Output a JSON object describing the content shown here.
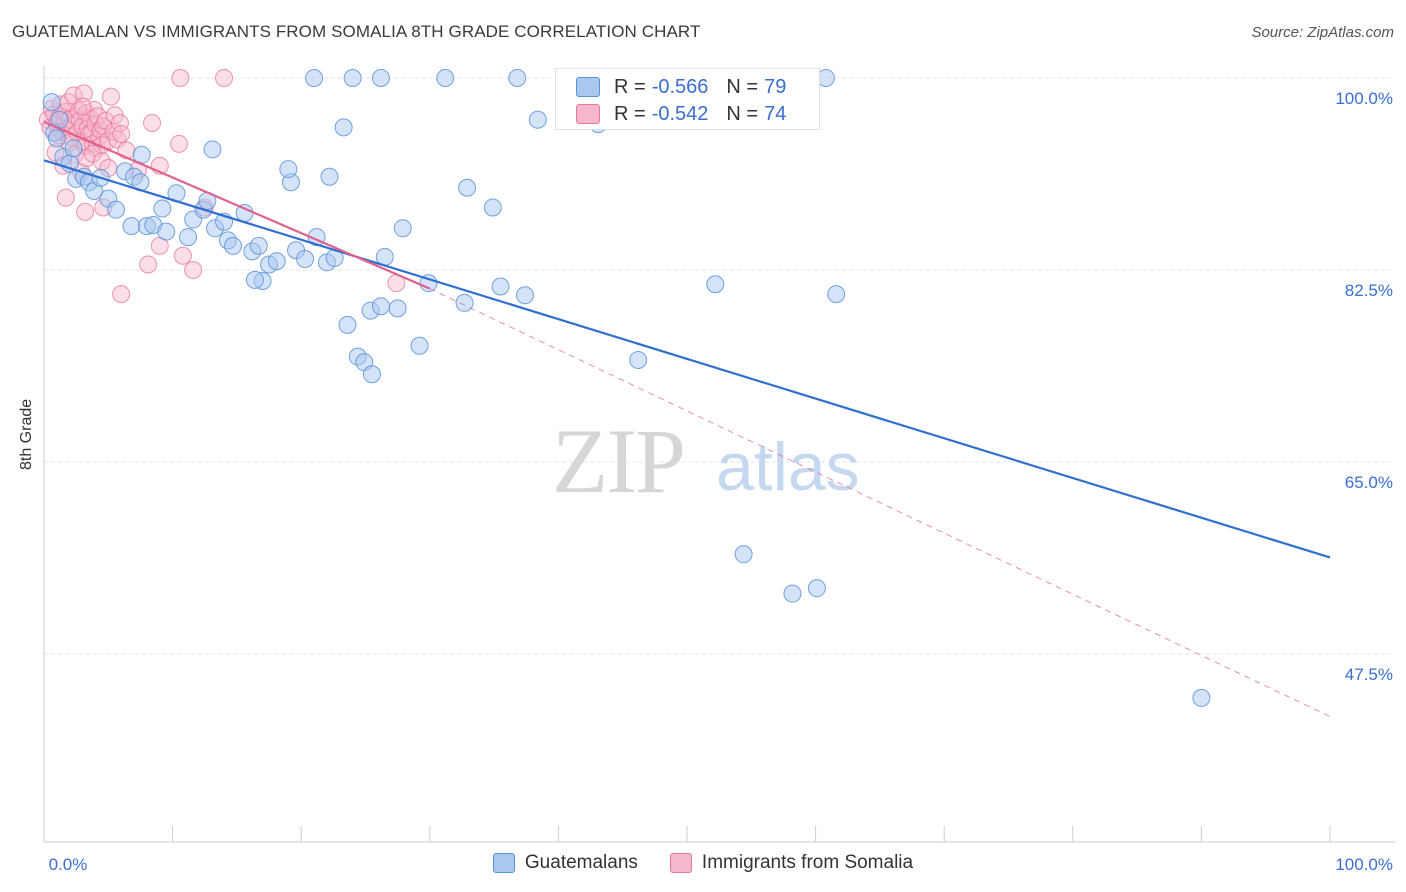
{
  "title": "GUATEMALAN VS IMMIGRANTS FROM SOMALIA 8TH GRADE CORRELATION CHART",
  "source": "Source: ZipAtlas.com",
  "watermark": {
    "zip": "ZIP",
    "atlas": "atlas"
  },
  "colors": {
    "blue_fill": "#a9c8f0",
    "blue_stroke": "#5b93dc",
    "blue_line": "#2f6fd0",
    "pink_fill": "#f7b8cc",
    "pink_stroke": "#e8799d",
    "pink_line": "#e0608e",
    "grid": "#e3e6ea",
    "tick_text": "#3a6fd0"
  },
  "legend_top": [
    {
      "r_label": "R =",
      "r_value": "-0.566",
      "n_label": "N =",
      "n_value": "79"
    },
    {
      "r_label": "R =",
      "r_value": "-0.542",
      "n_label": "N =",
      "n_value": "74"
    }
  ],
  "legend_bottom": [
    "Guatemalans",
    "Immigrants from Somalia"
  ],
  "chart_data": {
    "type": "scatter",
    "title": "GUATEMALAN VS IMMIGRANTS FROM SOMALIA 8TH GRADE CORRELATION CHART",
    "xlabel": "",
    "ylabel": "8th Grade",
    "xlim": [
      0,
      100
    ],
    "ylim": [
      33,
      100
    ],
    "x_tick_labels": [
      "0.0%",
      "100.0%"
    ],
    "y_ticks": [
      100.0,
      82.5,
      65.0,
      47.5
    ],
    "y_tick_labels": [
      "100.0%",
      "82.5%",
      "65.0%",
      "47.5%"
    ],
    "grid": true,
    "legend": "top-center and bottom",
    "series": [
      {
        "name": "Guatemalans",
        "r": -0.566,
        "n": 79,
        "trend": {
          "x": [
            0,
            100
          ],
          "y": [
            92.5,
            56.3
          ]
        },
        "points": [
          [
            0.6,
            97.8
          ],
          [
            0.8,
            95.0
          ],
          [
            1.0,
            94.5
          ],
          [
            1.2,
            96.2
          ],
          [
            1.5,
            92.8
          ],
          [
            2.0,
            92.2
          ],
          [
            2.3,
            93.6
          ],
          [
            2.5,
            90.8
          ],
          [
            3.1,
            91.0
          ],
          [
            3.5,
            90.5
          ],
          [
            3.9,
            89.7
          ],
          [
            4.4,
            90.9
          ],
          [
            5.0,
            89.0
          ],
          [
            5.6,
            88.0
          ],
          [
            6.3,
            91.5
          ],
          [
            7.0,
            91.0
          ],
          [
            7.5,
            90.5
          ],
          [
            7.6,
            93.0
          ],
          [
            6.8,
            86.5
          ],
          [
            8.0,
            86.5
          ],
          [
            8.5,
            86.6
          ],
          [
            9.5,
            86.0
          ],
          [
            9.2,
            88.1
          ],
          [
            10.3,
            89.5
          ],
          [
            11.2,
            85.5
          ],
          [
            11.6,
            87.1
          ],
          [
            12.4,
            88.0
          ],
          [
            12.7,
            88.8
          ],
          [
            13.1,
            93.5
          ],
          [
            13.3,
            86.3
          ],
          [
            14.0,
            86.9
          ],
          [
            14.3,
            85.2
          ],
          [
            14.7,
            84.7
          ],
          [
            15.6,
            87.7
          ],
          [
            16.2,
            84.2
          ],
          [
            16.7,
            84.7
          ],
          [
            17.5,
            83.0
          ],
          [
            18.1,
            83.3
          ],
          [
            17.0,
            81.5
          ],
          [
            16.4,
            81.6
          ],
          [
            19.2,
            90.5
          ],
          [
            19.0,
            91.7
          ],
          [
            19.6,
            84.3
          ],
          [
            20.3,
            83.5
          ],
          [
            21.2,
            85.5
          ],
          [
            22.0,
            83.2
          ],
          [
            22.6,
            83.6
          ],
          [
            22.2,
            91.0
          ],
          [
            23.3,
            95.5
          ],
          [
            23.6,
            77.5
          ],
          [
            24.4,
            74.6
          ],
          [
            24.9,
            74.1
          ],
          [
            25.4,
            78.8
          ],
          [
            25.5,
            73.0
          ],
          [
            26.2,
            79.2
          ],
          [
            26.5,
            83.7
          ],
          [
            27.5,
            79.0
          ],
          [
            27.9,
            86.3
          ],
          [
            29.2,
            75.6
          ],
          [
            29.9,
            81.3
          ],
          [
            32.7,
            79.5
          ],
          [
            32.9,
            90.0
          ],
          [
            34.9,
            88.2
          ],
          [
            35.5,
            81.0
          ],
          [
            37.4,
            80.2
          ],
          [
            38.4,
            96.2
          ],
          [
            43.1,
            95.8
          ],
          [
            46.2,
            74.3
          ],
          [
            54.4,
            56.6
          ],
          [
            58.2,
            53.0
          ],
          [
            60.1,
            53.5
          ],
          [
            52.2,
            81.2
          ],
          [
            61.6,
            80.3
          ],
          [
            21.0,
            100.0
          ],
          [
            24.0,
            100.0
          ],
          [
            26.2,
            100.0
          ],
          [
            31.2,
            100.0
          ],
          [
            36.8,
            100.0
          ],
          [
            60.8,
            100.0
          ],
          [
            90.0,
            43.5
          ]
        ]
      },
      {
        "name": "Immigrants from Somalia",
        "r": -0.542,
        "n": 74,
        "trend": {
          "x": [
            0,
            30
          ],
          "y": [
            96.0,
            80.8
          ]
        },
        "trend_dashed": {
          "x": [
            30,
            100
          ],
          "y": [
            80.8,
            41.8
          ]
        },
        "points": [
          [
            0.3,
            96.2
          ],
          [
            0.5,
            95.5
          ],
          [
            0.6,
            97.2
          ],
          [
            0.8,
            96.7
          ],
          [
            1.0,
            95.8
          ],
          [
            1.1,
            94.8
          ],
          [
            1.2,
            96.4
          ],
          [
            1.3,
            97.6
          ],
          [
            1.4,
            95.1
          ],
          [
            1.6,
            96.0
          ],
          [
            1.7,
            96.9
          ],
          [
            1.8,
            95.3
          ],
          [
            1.9,
            97.8
          ],
          [
            2.0,
            96.2
          ],
          [
            2.1,
            94.6
          ],
          [
            2.2,
            95.7
          ],
          [
            2.3,
            98.4
          ],
          [
            2.5,
            96.5
          ],
          [
            2.6,
            95.0
          ],
          [
            2.7,
            97.0
          ],
          [
            2.8,
            96.1
          ],
          [
            2.9,
            94.2
          ],
          [
            3.0,
            95.6
          ],
          [
            3.1,
            98.6
          ],
          [
            3.2,
            93.8
          ],
          [
            3.3,
            96.8
          ],
          [
            3.4,
            95.4
          ],
          [
            3.5,
            94.9
          ],
          [
            3.6,
            96.3
          ],
          [
            3.7,
            95.0
          ],
          [
            3.8,
            94.0
          ],
          [
            3.9,
            97.1
          ],
          [
            4.0,
            95.8
          ],
          [
            4.1,
            93.6
          ],
          [
            4.2,
            96.5
          ],
          [
            4.3,
            94.7
          ],
          [
            4.4,
            95.2
          ],
          [
            4.5,
            93.9
          ],
          [
            4.6,
            95.6
          ],
          [
            4.8,
            96.1
          ],
          [
            5.0,
            94.3
          ],
          [
            5.2,
            98.3
          ],
          [
            5.4,
            95.1
          ],
          [
            5.5,
            96.6
          ],
          [
            5.7,
            94.4
          ],
          [
            5.9,
            95.9
          ],
          [
            2.0,
            94.1
          ],
          [
            2.4,
            93.0
          ],
          [
            2.9,
            91.4
          ],
          [
            3.3,
            92.7
          ],
          [
            3.8,
            93.1
          ],
          [
            4.5,
            92.4
          ],
          [
            5.0,
            91.8
          ],
          [
            1.7,
            89.1
          ],
          [
            3.2,
            87.8
          ],
          [
            4.6,
            88.2
          ],
          [
            6.0,
            94.9
          ],
          [
            6.4,
            93.4
          ],
          [
            7.3,
            91.6
          ],
          [
            8.4,
            95.9
          ],
          [
            9.0,
            92.0
          ],
          [
            10.5,
            94.0
          ],
          [
            11.6,
            82.5
          ],
          [
            8.1,
            83.0
          ],
          [
            6.0,
            80.3
          ],
          [
            9.0,
            84.7
          ],
          [
            10.8,
            83.8
          ],
          [
            12.5,
            88.2
          ],
          [
            27.4,
            81.3
          ],
          [
            14.0,
            100.0
          ],
          [
            0.9,
            93.2
          ],
          [
            1.5,
            92.0
          ],
          [
            3.0,
            97.4
          ],
          [
            10.6,
            100.0
          ]
        ]
      }
    ]
  }
}
